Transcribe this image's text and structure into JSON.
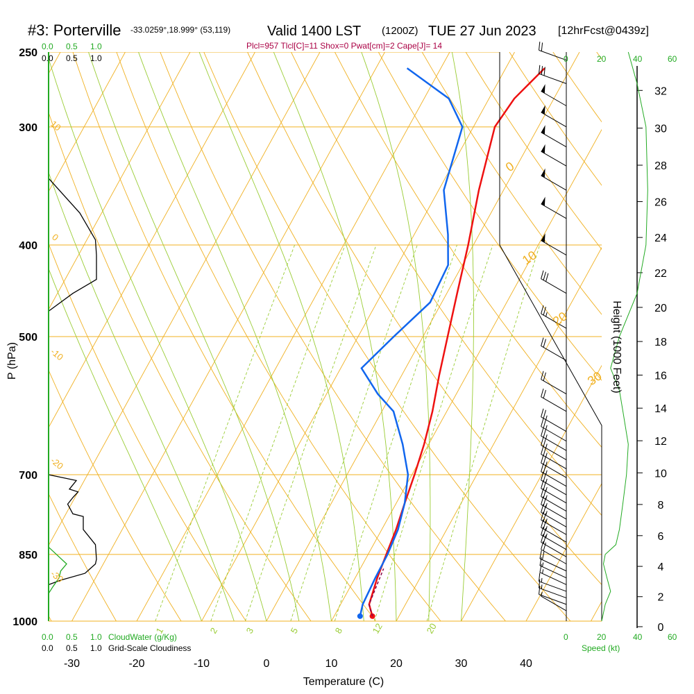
{
  "header": {
    "station": "#3: Porterville",
    "coords": "-33.0259°,18.999° (53,119)",
    "valid_prefix": "Valid 1400 LST",
    "utc": "(1200Z)",
    "date": "TUE 27 Jun 2023",
    "forecast": "[12hrFcst@0439z]",
    "indices": "Plcl=957 Tlcl[C]=11 Shox=0 Pwat[cm]=2 Cape[J]= 14"
  },
  "colors": {
    "temperature": "#ee1111",
    "dewpoint": "#1166ee",
    "isotherm": "#f0b020",
    "dry_adiabat": "#f0b020",
    "moist_adiabat": "#99cc33",
    "mixing_ratio": "#99cc33",
    "cloudwater": "#22aa22",
    "cloudiness": "#000000",
    "barb": "#000000",
    "title_indices": "#aa0044"
  },
  "top_scales": {
    "cloudwater": [
      "0.0",
      "0.5",
      "1.0"
    ],
    "cloudiness": [
      "0.0",
      "0.5",
      "1.0"
    ]
  },
  "bottom_scales": {
    "cloudwater_label": "CloudWater (g/Kg)",
    "cloudiness_label": "Grid-Scale Cloudiness",
    "cloudwater_ticks": [
      "0.0",
      "0.5",
      "1.0"
    ],
    "cloudiness_ticks": [
      "0.0",
      "0.5",
      "1.0"
    ],
    "speed_label": "Speed (kt)",
    "speed_ticks": [
      "0",
      "20",
      "40",
      "60"
    ]
  },
  "chart_data": {
    "type": "line",
    "xlabel": "Temperature (C)",
    "ylabel": "P (hPa)",
    "y2label": "Height (1000 Feet)",
    "xlim": [
      -35,
      45
    ],
    "ylim": [
      1000,
      250
    ],
    "x_ticks": [
      -30,
      -20,
      -10,
      0,
      10,
      20,
      30,
      40
    ],
    "y_ticks": [
      250,
      300,
      400,
      500,
      700,
      850,
      1000
    ],
    "y_tick_labels": [
      "250",
      "300",
      "400",
      "500",
      "700",
      "850",
      "1000"
    ],
    "height_ticks": [
      0,
      2,
      4,
      6,
      8,
      10,
      12,
      14,
      16,
      18,
      20,
      22,
      24,
      26,
      28,
      30,
      32
    ],
    "isotherm_labels": [
      "0",
      "10",
      "20",
      "30"
    ],
    "dry_adiabat_labels": [
      "10",
      "0",
      "-10",
      "-20",
      "-30"
    ],
    "mixing_ratio_labels": [
      "1",
      "2",
      "3",
      "5",
      "8",
      "12",
      "20"
    ],
    "series": [
      {
        "name": "Temperature",
        "points": [
          [
            15.9,
            988
          ],
          [
            14.4,
            960
          ],
          [
            13.4,
            900
          ],
          [
            12.8,
            850
          ],
          [
            12.2,
            800
          ],
          [
            11.3,
            750
          ],
          [
            10.4,
            700
          ],
          [
            9.3,
            650
          ],
          [
            7.8,
            600
          ],
          [
            5.8,
            550
          ],
          [
            3.8,
            500
          ],
          [
            1.6,
            450
          ],
          [
            -0.8,
            400
          ],
          [
            -3.8,
            350
          ],
          [
            -6.7,
            300
          ],
          [
            -6.1,
            280
          ],
          [
            -4.0,
            260
          ]
        ]
      },
      {
        "name": "Dewpoint",
        "points": [
          [
            14.0,
            988
          ],
          [
            13.4,
            960
          ],
          [
            13.1,
            900
          ],
          [
            13.0,
            850
          ],
          [
            12.5,
            800
          ],
          [
            11.3,
            750
          ],
          [
            9.4,
            700
          ],
          [
            6.0,
            650
          ],
          [
            1.8,
            600
          ],
          [
            -2.1,
            575
          ],
          [
            -6.8,
            540
          ],
          [
            -4.5,
            500
          ],
          [
            -1.8,
            460
          ],
          [
            -2.2,
            420
          ],
          [
            -4.8,
            390
          ],
          [
            -9.2,
            350
          ],
          [
            -11.7,
            300
          ],
          [
            -16.2,
            280
          ],
          [
            -25.2,
            260
          ]
        ]
      }
    ],
    "cloudiness_profile": [
      [
        0.0,
        700
      ],
      [
        0.8,
        710
      ],
      [
        0.6,
        725
      ],
      [
        0.85,
        730
      ],
      [
        0.7,
        740
      ],
      [
        0.55,
        752
      ],
      [
        0.7,
        770
      ],
      [
        1.0,
        775
      ],
      [
        1.0,
        800
      ],
      [
        1.35,
        830
      ],
      [
        1.38,
        860
      ],
      [
        1.35,
        870
      ],
      [
        1.05,
        890
      ],
      [
        0.35,
        905
      ],
      [
        0.0,
        915
      ]
    ],
    "cloudiness_upper": [
      [
        0.0,
        340
      ],
      [
        0.9,
        370
      ],
      [
        1.35,
        395
      ],
      [
        1.38,
        410
      ],
      [
        1.38,
        435
      ],
      [
        0.7,
        450
      ],
      [
        0.0,
        470
      ]
    ],
    "cloudwater_profile": [
      [
        0.0,
        835
      ],
      [
        0.3,
        855
      ],
      [
        0.52,
        870
      ],
      [
        0.35,
        885
      ],
      [
        0.3,
        900
      ],
      [
        0.12,
        920
      ],
      [
        0.0,
        935
      ]
    ],
    "wind_barbs": [
      {
        "p": 975,
        "dir": 300,
        "spd": 5
      },
      {
        "p": 960,
        "dir": 290,
        "spd": 10
      },
      {
        "p": 945,
        "dir": 290,
        "spd": 15
      },
      {
        "p": 930,
        "dir": 290,
        "spd": 15
      },
      {
        "p": 915,
        "dir": 295,
        "spd": 15
      },
      {
        "p": 900,
        "dir": 295,
        "spd": 15
      },
      {
        "p": 885,
        "dir": 295,
        "spd": 20
      },
      {
        "p": 870,
        "dir": 300,
        "spd": 20
      },
      {
        "p": 855,
        "dir": 300,
        "spd": 20
      },
      {
        "p": 840,
        "dir": 300,
        "spd": 25
      },
      {
        "p": 825,
        "dir": 300,
        "spd": 25
      },
      {
        "p": 810,
        "dir": 300,
        "spd": 25
      },
      {
        "p": 795,
        "dir": 300,
        "spd": 25
      },
      {
        "p": 780,
        "dir": 300,
        "spd": 25
      },
      {
        "p": 765,
        "dir": 300,
        "spd": 25
      },
      {
        "p": 750,
        "dir": 300,
        "spd": 25
      },
      {
        "p": 735,
        "dir": 300,
        "spd": 25
      },
      {
        "p": 720,
        "dir": 300,
        "spd": 25
      },
      {
        "p": 705,
        "dir": 300,
        "spd": 25
      },
      {
        "p": 690,
        "dir": 300,
        "spd": 25
      },
      {
        "p": 675,
        "dir": 300,
        "spd": 25
      },
      {
        "p": 660,
        "dir": 300,
        "spd": 25
      },
      {
        "p": 645,
        "dir": 300,
        "spd": 25
      },
      {
        "p": 630,
        "dir": 300,
        "spd": 25
      },
      {
        "p": 600,
        "dir": 300,
        "spd": 20
      },
      {
        "p": 575,
        "dir": 300,
        "spd": 20
      },
      {
        "p": 530,
        "dir": 300,
        "spd": 20
      },
      {
        "p": 490,
        "dir": 300,
        "spd": 25
      },
      {
        "p": 450,
        "dir": 300,
        "spd": 30
      },
      {
        "p": 410,
        "dir": 300,
        "spd": 50
      },
      {
        "p": 375,
        "dir": 300,
        "spd": 50
      },
      {
        "p": 350,
        "dir": 300,
        "spd": 50
      },
      {
        "p": 330,
        "dir": 300,
        "spd": 50
      },
      {
        "p": 315,
        "dir": 300,
        "spd": 50
      },
      {
        "p": 300,
        "dir": 300,
        "spd": 50
      },
      {
        "p": 285,
        "dir": 300,
        "spd": 50
      },
      {
        "p": 270,
        "dir": 290,
        "spd": 30
      },
      {
        "p": 255,
        "dir": 290,
        "spd": 20
      }
    ],
    "speed_profile": [
      [
        20,
        1000
      ],
      [
        22,
        960
      ],
      [
        25,
        930
      ],
      [
        23,
        900
      ],
      [
        21,
        870
      ],
      [
        22,
        850
      ],
      [
        28,
        830
      ],
      [
        30,
        800
      ],
      [
        32,
        750
      ],
      [
        34,
        700
      ],
      [
        35,
        650
      ],
      [
        32,
        600
      ],
      [
        30,
        570
      ],
      [
        25,
        540
      ],
      [
        30,
        500
      ],
      [
        40,
        450
      ],
      [
        45,
        400
      ],
      [
        46,
        350
      ],
      [
        45,
        300
      ],
      [
        40,
        270
      ],
      [
        35,
        250
      ]
    ]
  }
}
